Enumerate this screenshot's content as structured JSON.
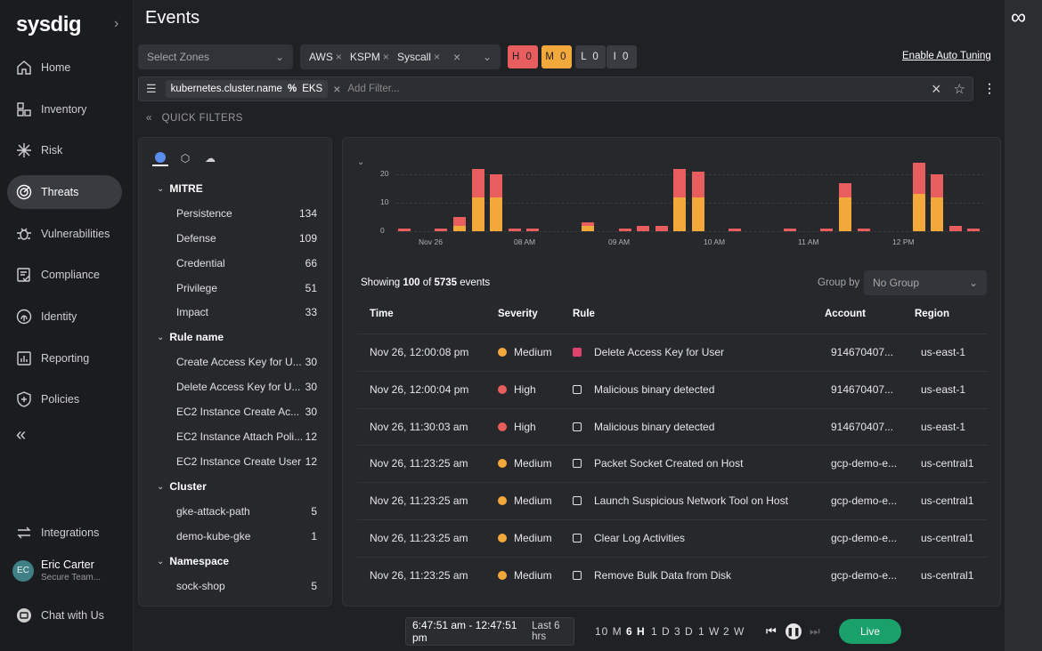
{
  "sidebar": {
    "logo": "sysdig",
    "items": [
      {
        "label": "Home",
        "icon": "home-icon"
      },
      {
        "label": "Inventory",
        "icon": "inventory-icon"
      },
      {
        "label": "Risk",
        "icon": "risk-icon"
      },
      {
        "label": "Threats",
        "icon": "threats-icon",
        "active": true
      },
      {
        "label": "Vulnerabilities",
        "icon": "bug-icon"
      },
      {
        "label": "Compliance",
        "icon": "compliance-icon"
      },
      {
        "label": "Identity",
        "icon": "fingerprint-icon"
      },
      {
        "label": "Reporting",
        "icon": "report-icon"
      },
      {
        "label": "Policies",
        "icon": "shield-icon"
      }
    ],
    "integrations": "Integrations",
    "user": {
      "initials": "EC",
      "name": "Eric Carter",
      "team": "Secure Team..."
    },
    "chat": "Chat with Us"
  },
  "header": {
    "title": "Events"
  },
  "filters": {
    "zones_placeholder": "Select Zones",
    "sources": [
      "AWS",
      "KSPM",
      "Syscall"
    ],
    "severity": [
      {
        "label": "H 0",
        "color": "#e85d5d"
      },
      {
        "label": "M 0",
        "color": "#f3a83b"
      },
      {
        "label": "L 0",
        "color": "#3a3b40"
      },
      {
        "label": "I 0",
        "color": "#3a3b40"
      }
    ],
    "auto_tuning": "Enable Auto Tuning",
    "active_filter": {
      "key": "kubernetes.cluster.name",
      "op": "%",
      "value": "EKS"
    },
    "add_filter_placeholder": "Add Filter...",
    "quick_filters": "QUICK FILTERS"
  },
  "quick_filters": {
    "groups": [
      {
        "title": "MITRE",
        "items": [
          {
            "label": "Persistence",
            "count": "134"
          },
          {
            "label": "Defense",
            "count": "109"
          },
          {
            "label": "Credential",
            "count": "66"
          },
          {
            "label": "Privilege",
            "count": "51"
          },
          {
            "label": "Impact",
            "count": "33"
          }
        ]
      },
      {
        "title": "Rule name",
        "items": [
          {
            "label": "Create Access Key for U...",
            "count": "30"
          },
          {
            "label": "Delete Access Key for U...",
            "count": "30"
          },
          {
            "label": "EC2 Instance Create Ac...",
            "count": "30"
          },
          {
            "label": "EC2 Instance Attach Poli...",
            "count": "12"
          },
          {
            "label": "EC2 Instance Create User",
            "count": "12"
          }
        ]
      },
      {
        "title": "Cluster",
        "items": [
          {
            "label": "gke-attack-path",
            "count": "5"
          },
          {
            "label": "demo-kube-gke",
            "count": "1"
          }
        ]
      },
      {
        "title": "Namespace",
        "items": [
          {
            "label": "sock-shop",
            "count": "5"
          }
        ]
      }
    ]
  },
  "chart_data": {
    "type": "bar",
    "stacked": true,
    "y_ticks": [
      "0",
      "10",
      "20"
    ],
    "ylim": [
      0,
      25
    ],
    "x_ticks": [
      "Nov 26",
      "08 AM",
      "09 AM",
      "10 AM",
      "11 AM",
      "12 PM"
    ],
    "series": [
      {
        "name": "Medium",
        "color": "#f3a83b",
        "values": [
          0,
          0,
          0,
          2,
          12,
          12,
          0,
          0,
          0,
          0,
          2,
          0,
          0,
          0,
          0,
          12,
          12,
          0,
          0,
          0,
          0,
          0,
          0,
          0,
          12,
          0,
          0,
          0,
          13,
          12,
          0,
          0
        ]
      },
      {
        "name": "High",
        "color": "#e85d5d",
        "values": [
          1,
          0,
          1,
          3,
          10,
          8,
          1,
          1,
          0,
          0,
          1,
          0,
          1,
          2,
          2,
          10,
          9,
          0,
          1,
          0,
          0,
          1,
          0,
          1,
          5,
          1,
          0,
          0,
          11,
          8,
          2,
          1
        ]
      }
    ]
  },
  "events": {
    "summary_prefix": "Showing ",
    "shown": "100",
    "summary_mid": " of ",
    "total": "5735",
    "summary_suffix": " events",
    "group_by_label": "Group by",
    "group_by_value": "No Group",
    "columns": [
      "Time",
      "Severity",
      "Rule",
      "Account",
      "Region"
    ],
    "rows": [
      {
        "time": "Nov 26, 12:00:08 pm",
        "severity": "Medium",
        "rule": "Delete Access Key for User",
        "account": "914670407...",
        "region": "us-east-1",
        "rule_icon": "aws-icon"
      },
      {
        "time": "Nov 26, 12:00:04 pm",
        "severity": "High",
        "rule": "Malicious binary detected",
        "account": "914670407...",
        "region": "us-east-1",
        "rule_icon": "chip-icon"
      },
      {
        "time": "Nov 26, 11:30:03 am",
        "severity": "High",
        "rule": "Malicious binary detected",
        "account": "914670407...",
        "region": "us-east-1",
        "rule_icon": "chip-icon"
      },
      {
        "time": "Nov 26, 11:23:25 am",
        "severity": "Medium",
        "rule": "Packet Socket Created on Host",
        "account": "gcp-demo-e...",
        "region": "us-central1",
        "rule_icon": "chip-icon"
      },
      {
        "time": "Nov 26, 11:23:25 am",
        "severity": "Medium",
        "rule": "Launch Suspicious Network Tool on Host",
        "account": "gcp-demo-e...",
        "region": "us-central1",
        "rule_icon": "chip-icon"
      },
      {
        "time": "Nov 26, 11:23:25 am",
        "severity": "Medium",
        "rule": "Clear Log Activities",
        "account": "gcp-demo-e...",
        "region": "us-central1",
        "rule_icon": "chip-icon"
      },
      {
        "time": "Nov 26, 11:23:25 am",
        "severity": "Medium",
        "rule": "Remove Bulk Data from Disk",
        "account": "gcp-demo-e...",
        "region": "us-central1",
        "rule_icon": "chip-icon"
      }
    ]
  },
  "timebar": {
    "range": "6:47:51 am - 12:47:51 pm",
    "range_label": "Last 6 hrs",
    "options": [
      "10 M",
      "6 H",
      "1 D",
      "3 D",
      "1 W",
      "2 W"
    ],
    "selected": "6 H",
    "live": "Live"
  },
  "colors": {
    "high": "#e85d5d",
    "medium": "#f3a83b",
    "live": "#1aa06b"
  }
}
